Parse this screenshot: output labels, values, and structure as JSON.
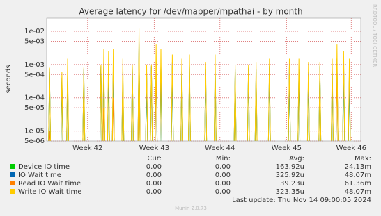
{
  "chart_data": {
    "type": "line",
    "title": "Average latency for /dev/mapper/mpathai - by month",
    "y_label": "seconds",
    "log_y": true,
    "grid": true,
    "xlim": [
      0,
      33
    ],
    "xticks": [
      {
        "value": 4.3,
        "label": "Week 42"
      },
      {
        "value": 11.3,
        "label": "Week 43"
      },
      {
        "value": 18.2,
        "label": "Week 44"
      },
      {
        "value": 25.2,
        "label": "Week 45"
      },
      {
        "value": 32.0,
        "label": "Week 46"
      }
    ],
    "ylim": [
      5e-06,
      0.025
    ],
    "yticks": [
      {
        "value": 0.01,
        "label": "1e-02"
      },
      {
        "value": 0.005,
        "label": "5e-03"
      },
      {
        "value": 0.001,
        "label": "1e-03"
      },
      {
        "value": 0.0005,
        "label": "5e-04"
      },
      {
        "value": 0.0001,
        "label": "1e-04"
      },
      {
        "value": 5e-05,
        "label": "5e-05"
      },
      {
        "value": 1e-05,
        "label": "1e-05"
      },
      {
        "value": 5e-06,
        "label": "5e-06"
      }
    ],
    "x": [
      0.18,
      0.3,
      0.42,
      1.48,
      1.6,
      1.72,
      2.08,
      2.2,
      2.32,
      3.78,
      3.9,
      4.02,
      5.58,
      5.7,
      5.82,
      5.88,
      6.0,
      6.12,
      6.38,
      6.5,
      6.62,
      6.88,
      7.0,
      7.12,
      7.88,
      8.0,
      8.12,
      8.88,
      9.0,
      9.12,
      9.58,
      9.7,
      9.82,
      10.38,
      10.5,
      10.62,
      10.88,
      11.0,
      11.12,
      11.38,
      11.5,
      11.62,
      11.88,
      12.0,
      12.12,
      13.08,
      13.2,
      13.32,
      14.08,
      14.2,
      14.32,
      14.88,
      15.0,
      15.12,
      16.58,
      16.7,
      16.82,
      17.58,
      17.7,
      17.82,
      19.68,
      19.8,
      19.92,
      21.08,
      21.2,
      21.32,
      21.88,
      22.0,
      22.12,
      23.28,
      23.4,
      23.52,
      25.38,
      25.5,
      25.62,
      26.38,
      26.5,
      26.62,
      27.38,
      27.5,
      27.62,
      28.58,
      28.7,
      28.82,
      29.88,
      30.0,
      30.12,
      30.38,
      30.5,
      30.62,
      31.08,
      31.2,
      31.32,
      31.68,
      31.8,
      31.92
    ],
    "series": [
      {
        "name": "Device IO time",
        "color": "#00cc00",
        "values": [
          2e-06,
          0.0006,
          2e-06,
          2e-06,
          0.0003,
          2e-06,
          2e-06,
          0.0005,
          2e-06,
          2e-06,
          0.0006,
          2e-06,
          2e-06,
          0.0008,
          2e-06,
          2e-06,
          0.001,
          2e-06,
          2e-06,
          0.0006,
          2e-06,
          2e-06,
          0.001,
          2e-06,
          2e-06,
          0.0005,
          2e-06,
          2e-06,
          0.0008,
          2e-06,
          2e-06,
          0.004,
          2e-06,
          2e-06,
          0.0005,
          2e-06,
          2e-06,
          0.0008,
          2e-06,
          2e-06,
          0.001,
          2e-06,
          2e-06,
          0.0008,
          2e-06,
          2e-06,
          0.001,
          2e-06,
          2e-06,
          0.0008,
          2e-06,
          2e-06,
          0.0009,
          2e-06,
          2e-06,
          0.0006,
          2e-06,
          2e-06,
          0.0008,
          2e-06,
          2e-06,
          0.0006,
          2e-06,
          2e-06,
          0.0007,
          2e-06,
          2e-06,
          0.0006,
          2e-06,
          2e-06,
          0.0008,
          2e-06,
          2e-06,
          0.0008,
          2e-06,
          2e-06,
          0.0006,
          2e-06,
          2e-06,
          0.0005,
          2e-06,
          2e-06,
          0.0008,
          2e-06,
          2e-06,
          0.0006,
          2e-06,
          2e-06,
          0.0012,
          2e-06,
          2e-06,
          0.001,
          2e-06,
          2e-06,
          0.0005,
          2e-06
        ]
      },
      {
        "name": "IO Wait time",
        "color": "#0066b3",
        "values": [
          2e-06,
          0.0007,
          2e-06,
          2e-06,
          0.0004,
          2e-06,
          2e-06,
          0.0006,
          2e-06,
          2e-06,
          0.0007,
          2e-06,
          2e-06,
          0.0009,
          2e-06,
          2e-06,
          0.0012,
          2e-06,
          2e-06,
          0.0007,
          2e-06,
          2e-06,
          0.0012,
          2e-06,
          2e-06,
          0.0006,
          2e-06,
          2e-06,
          0.0009,
          2e-06,
          2e-06,
          0.005,
          2e-06,
          2e-06,
          0.0006,
          2e-06,
          2e-06,
          0.0009,
          2e-06,
          2e-06,
          0.0012,
          2e-06,
          2e-06,
          0.0009,
          2e-06,
          2e-06,
          0.0012,
          2e-06,
          2e-06,
          0.0009,
          2e-06,
          2e-06,
          0.001,
          2e-06,
          2e-06,
          0.0007,
          2e-06,
          2e-06,
          0.0009,
          2e-06,
          2e-06,
          0.0007,
          2e-06,
          2e-06,
          0.0008,
          2e-06,
          2e-06,
          0.0007,
          2e-06,
          2e-06,
          0.0009,
          2e-06,
          2e-06,
          0.0009,
          2e-06,
          2e-06,
          0.0007,
          2e-06,
          2e-06,
          0.0006,
          2e-06,
          2e-06,
          0.0009,
          2e-06,
          2e-06,
          0.0007,
          2e-06,
          2e-06,
          0.0015,
          2e-06,
          2e-06,
          0.0012,
          2e-06,
          2e-06,
          0.0006,
          2e-06
        ]
      },
      {
        "name": "Read IO Wait time",
        "color": "#ff8000",
        "values": [
          2e-06,
          1e-05,
          2e-06,
          2e-06,
          2e-06,
          2e-06,
          2e-06,
          2e-06,
          2e-06,
          2e-06,
          2e-06,
          2e-06,
          2e-06,
          2e-06,
          2e-06,
          2e-06,
          5e-05,
          2e-06,
          2e-06,
          2e-06,
          2e-06,
          2e-06,
          0.0001,
          2e-06,
          2e-06,
          2e-06,
          2e-06,
          2e-06,
          2e-06,
          2e-06,
          2e-06,
          0.002,
          2e-06,
          2e-06,
          2e-06,
          2e-06,
          2e-06,
          2e-06,
          2e-06,
          2e-06,
          0.001,
          2e-06,
          2e-06,
          2e-06,
          2e-06,
          2e-06,
          2e-06,
          2e-06,
          2e-06,
          2e-06,
          2e-06,
          2e-06,
          2e-06,
          2e-06,
          2e-06,
          2e-06,
          2e-06,
          2e-06,
          2e-06,
          2e-06,
          2e-06,
          2e-06,
          2e-06,
          2e-06,
          2e-06,
          2e-06,
          2e-06,
          2e-06,
          2e-06,
          2e-06,
          2e-06,
          2e-06,
          2e-06,
          2e-06,
          2e-06,
          2e-06,
          2e-06,
          2e-06,
          2e-06,
          2e-06,
          2e-06,
          2e-06,
          2e-06,
          2e-06,
          2e-06,
          2e-06,
          2e-06,
          2e-06,
          0.0005,
          2e-06,
          2e-06,
          2e-06,
          2e-06,
          2e-06,
          2e-06,
          2e-06
        ]
      },
      {
        "name": "Write IO Wait time",
        "color": "#ffcc00",
        "values": [
          2e-06,
          0.0008,
          2e-06,
          2e-06,
          0.0006,
          2e-06,
          2e-06,
          0.0015,
          2e-06,
          2e-06,
          0.0008,
          2e-06,
          2e-06,
          0.001,
          2e-06,
          2e-06,
          0.003,
          2e-06,
          2e-06,
          0.0025,
          2e-06,
          2e-06,
          0.003,
          2e-06,
          2e-06,
          0.0015,
          2e-06,
          2e-06,
          0.001,
          2e-06,
          2e-06,
          0.012,
          2e-06,
          2e-06,
          0.001,
          2e-06,
          2e-06,
          0.001,
          2e-06,
          2e-06,
          0.004,
          2e-06,
          2e-06,
          0.003,
          2e-06,
          2e-06,
          0.002,
          2e-06,
          2e-06,
          0.0015,
          2e-06,
          2e-06,
          0.002,
          2e-06,
          2e-06,
          0.0012,
          2e-06,
          2e-06,
          0.002,
          2e-06,
          2e-06,
          0.001,
          2e-06,
          2e-06,
          0.001,
          2e-06,
          2e-06,
          0.0012,
          2e-06,
          2e-06,
          0.0015,
          2e-06,
          2e-06,
          0.0015,
          2e-06,
          2e-06,
          0.0015,
          2e-06,
          2e-06,
          0.0012,
          2e-06,
          2e-06,
          0.0012,
          2e-06,
          2e-06,
          0.0015,
          2e-06,
          2e-06,
          0.004,
          2e-06,
          2e-06,
          0.0025,
          2e-06,
          2e-06,
          0.0015,
          2e-06
        ]
      }
    ],
    "stats": {
      "header": [
        "Cur:",
        "Min:",
        "Avg:",
        "Max:"
      ],
      "rows": [
        [
          "0.00",
          "0.00",
          "163.92u",
          "24.13m"
        ],
        [
          "0.00",
          "0.00",
          "325.92u",
          "48.07m"
        ],
        [
          "0.00",
          "0.00",
          "39.23u",
          "61.36m"
        ],
        [
          "0.00",
          "0.00",
          "323.35u",
          "48.07m"
        ]
      ]
    },
    "last_update": "Last update: Thu Nov 14 09:00:05 2024",
    "version": "Munin 2.0.73",
    "watermark": "RRDTOOL / TOBI OETIKER"
  }
}
